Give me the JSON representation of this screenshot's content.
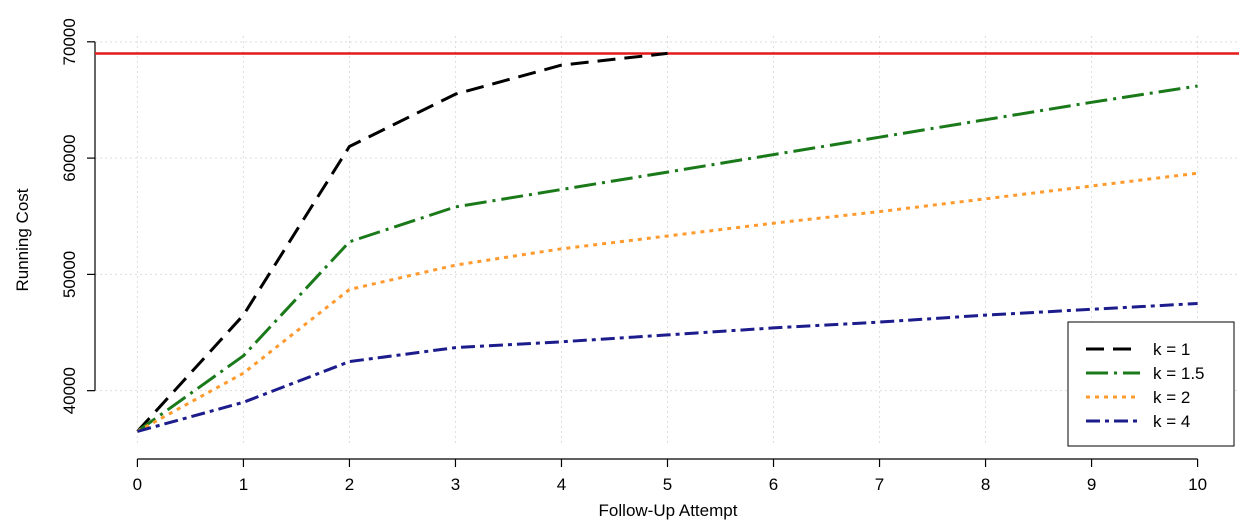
{
  "chart_data": {
    "type": "line",
    "xlabel": "Follow-Up Attempt",
    "ylabel": "Running Cost",
    "x": [
      0,
      1,
      2,
      3,
      4,
      5,
      6,
      7,
      8,
      9,
      10
    ],
    "x_ticks": [
      0,
      1,
      2,
      3,
      4,
      5,
      6,
      7,
      8,
      9,
      10
    ],
    "y_ticks": [
      40000,
      50000,
      60000,
      70000
    ],
    "xlim": [
      -0.4,
      10.4
    ],
    "ylim": [
      35500,
      70500
    ],
    "grid": true,
    "legend_position": "bottom-right",
    "reference_line": {
      "y": 69000,
      "color": "#e41a1c"
    },
    "series": [
      {
        "name": "k = 1",
        "color": "#000000",
        "dash": "18,9",
        "values": [
          36500,
          46500,
          61000,
          65500,
          68000,
          69000,
          null,
          null,
          null,
          null,
          null
        ]
      },
      {
        "name": "k = 1.5",
        "color": "#1a7a1a",
        "dash": "22,6,3,6",
        "values": [
          36500,
          43000,
          52800,
          55800,
          57300,
          58800,
          60300,
          61800,
          63300,
          64800,
          66200
        ]
      },
      {
        "name": "k = 2",
        "color": "#ff9a2e",
        "dash": "4,5",
        "values": [
          36500,
          41500,
          48700,
          50800,
          52200,
          53300,
          54400,
          55400,
          56500,
          57600,
          58700
        ]
      },
      {
        "name": "k = 4",
        "color": "#1c1c8c",
        "dash": "14,5,4,5",
        "values": [
          36500,
          39000,
          42500,
          43700,
          44200,
          44800,
          45400,
          45900,
          46500,
          47000,
          47500
        ]
      }
    ]
  }
}
